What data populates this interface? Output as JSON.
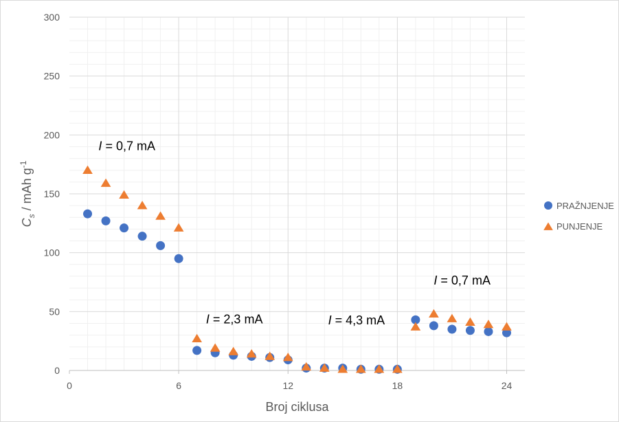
{
  "chart_data": {
    "type": "scatter",
    "xlabel": "Broj ciklusa",
    "ylabel": {
      "main": "C",
      "sub": "s",
      "rest": " / mAh g",
      "sup": "-1"
    },
    "xlim": [
      0,
      25
    ],
    "ylim": [
      0,
      300
    ],
    "xticks": [
      0,
      6,
      12,
      18,
      24
    ],
    "yticks": [
      0,
      50,
      100,
      150,
      200,
      250,
      300
    ],
    "grid": true,
    "legend_position": "right",
    "series": [
      {
        "name": "PRAŽNJENJE",
        "marker": "circle",
        "color": "#4472c4",
        "x": [
          1,
          2,
          3,
          4,
          5,
          6,
          7,
          8,
          9,
          10,
          11,
          12,
          13,
          14,
          15,
          16,
          17,
          18,
          19,
          20,
          21,
          22,
          23,
          24
        ],
        "y": [
          133,
          127,
          121,
          114,
          106,
          95,
          17,
          15,
          13,
          12,
          11,
          9,
          2,
          2,
          2,
          1,
          1,
          1,
          43,
          38,
          35,
          34,
          33,
          32
        ]
      },
      {
        "name": "PUNJENJE",
        "marker": "triangle",
        "color": "#ed7d31",
        "x": [
          1,
          2,
          3,
          4,
          5,
          6,
          7,
          8,
          9,
          10,
          11,
          12,
          13,
          14,
          15,
          16,
          17,
          18,
          19,
          20,
          21,
          22,
          23,
          24
        ],
        "y": [
          170,
          159,
          149,
          140,
          131,
          121,
          27,
          19,
          16,
          14,
          12,
          11,
          3,
          2,
          1,
          1,
          1,
          1,
          37,
          48,
          44,
          41,
          39,
          37
        ]
      }
    ],
    "annotations": [
      {
        "italic": "I",
        "text": " = 0,7 mA",
        "x": 1.6,
        "y": 187
      },
      {
        "italic": "I",
        "text": " = 2,3 mA",
        "x": 7.5,
        "y": 40
      },
      {
        "italic": "I",
        "text": " = 4,3 mA",
        "x": 14.2,
        "y": 39
      },
      {
        "italic": "I",
        "text": " = 0,7 mA",
        "x": 20.0,
        "y": 73
      }
    ]
  }
}
